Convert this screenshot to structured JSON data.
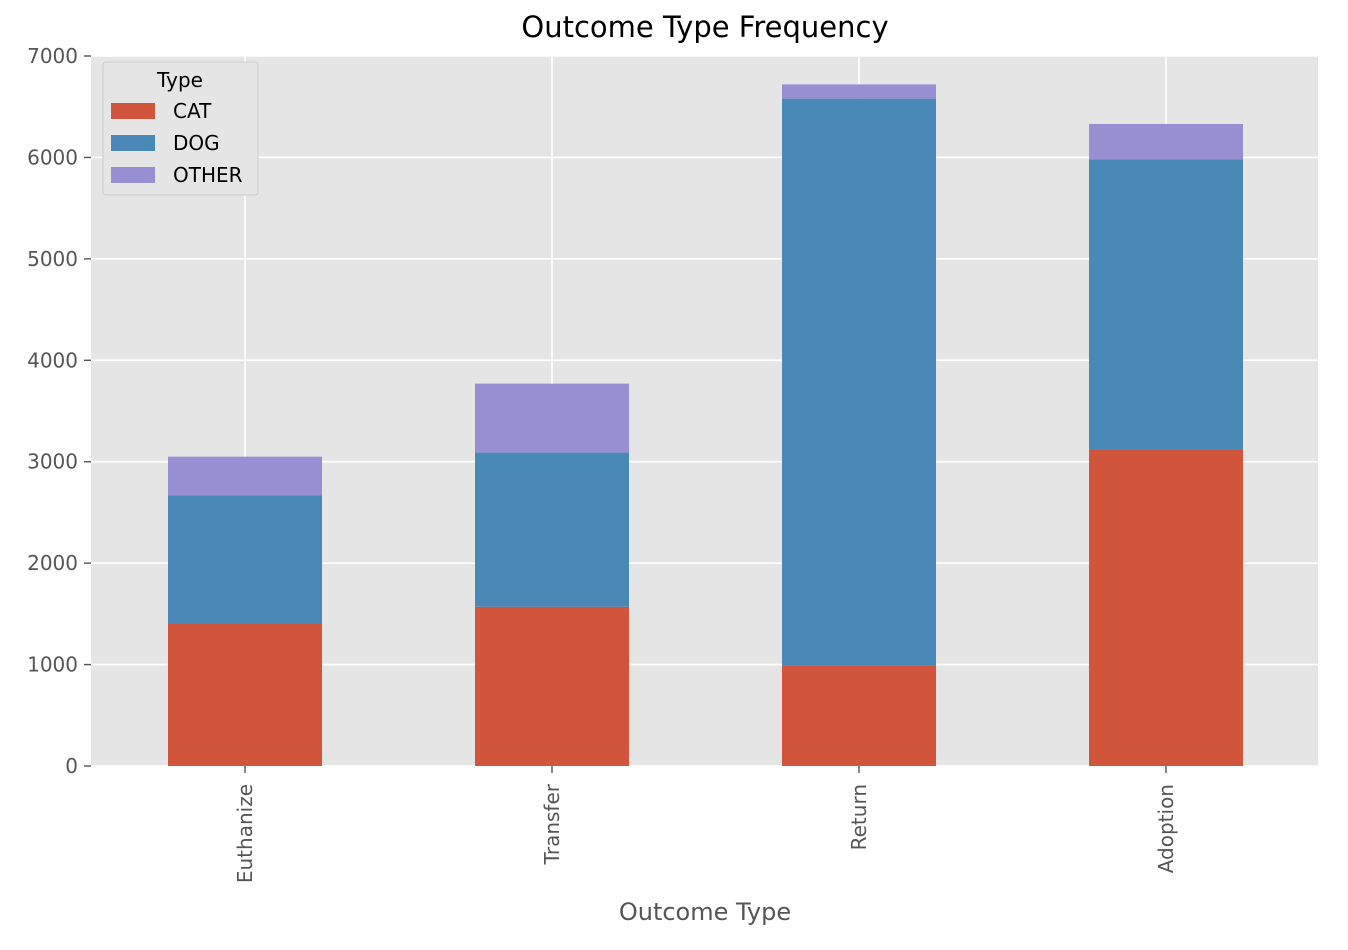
{
  "chart_data": {
    "type": "bar",
    "stacked": true,
    "title": "Outcome Type Frequency",
    "xlabel": "Outcome Type",
    "ylabel": "",
    "categories": [
      "Euthanize",
      "Transfer",
      "Return",
      "Adoption"
    ],
    "series": [
      {
        "name": "CAT",
        "color": "#d1553d",
        "values": [
          1400,
          1570,
          990,
          3120
        ]
      },
      {
        "name": "DOG",
        "color": "#4a88b8",
        "values": [
          1270,
          1520,
          5590,
          2860
        ]
      },
      {
        "name": "OTHER",
        "color": "#988fd2",
        "values": [
          380,
          680,
          140,
          350
        ]
      }
    ],
    "ylim": [
      0,
      7000
    ],
    "yticks": [
      "0",
      "1000",
      "2000",
      "3000",
      "4000",
      "5000",
      "6000",
      "7000"
    ],
    "grid": true,
    "legend": {
      "title": "Type",
      "position": "top-left"
    },
    "style": {
      "background": "#e5e5e5",
      "grid_color": "#ffffff"
    }
  }
}
